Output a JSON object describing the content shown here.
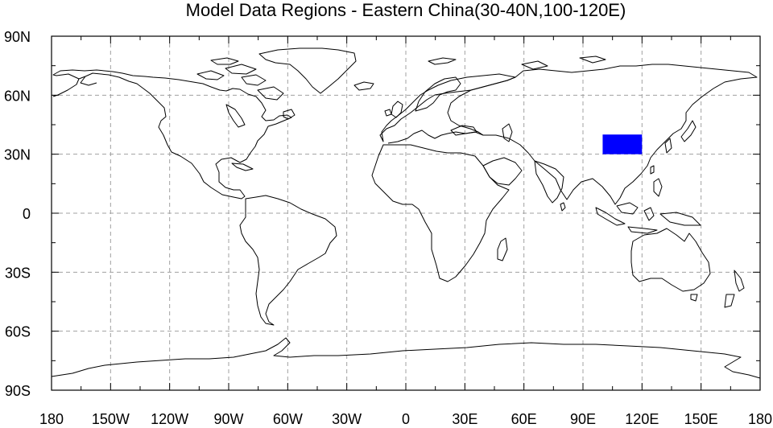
{
  "title": "Model Data Regions - Eastern China(30-40N,100-120E)",
  "map": {
    "projection": "cylindrical-equidistant",
    "lon_range": [
      -180,
      180
    ],
    "lat_range": [
      -90,
      90
    ],
    "grid_on": true,
    "grid_style": "dashed",
    "grid_color": "#a0a0a0",
    "coastline_color": "#000000",
    "lon_ticks": [
      {
        "value": -180,
        "label": "180"
      },
      {
        "value": -150,
        "label": "150W"
      },
      {
        "value": -120,
        "label": "120W"
      },
      {
        "value": -90,
        "label": "90W"
      },
      {
        "value": -60,
        "label": "60W"
      },
      {
        "value": -30,
        "label": "30W"
      },
      {
        "value": 0,
        "label": "0"
      },
      {
        "value": 30,
        "label": "30E"
      },
      {
        "value": 60,
        "label": "60E"
      },
      {
        "value": 90,
        "label": "90E"
      },
      {
        "value": 120,
        "label": "120E"
      },
      {
        "value": 150,
        "label": "150E"
      },
      {
        "value": 180,
        "label": "180"
      }
    ],
    "lat_ticks": [
      {
        "value": 90,
        "label": "90N"
      },
      {
        "value": 60,
        "label": "60N"
      },
      {
        "value": 30,
        "label": "30N"
      },
      {
        "value": 0,
        "label": "0"
      },
      {
        "value": -30,
        "label": "30S"
      },
      {
        "value": -60,
        "label": "60S"
      },
      {
        "value": -90,
        "label": "90S"
      }
    ],
    "region": {
      "lon": [
        100,
        120
      ],
      "lat": [
        30,
        40
      ],
      "color": "#0000ff"
    }
  }
}
